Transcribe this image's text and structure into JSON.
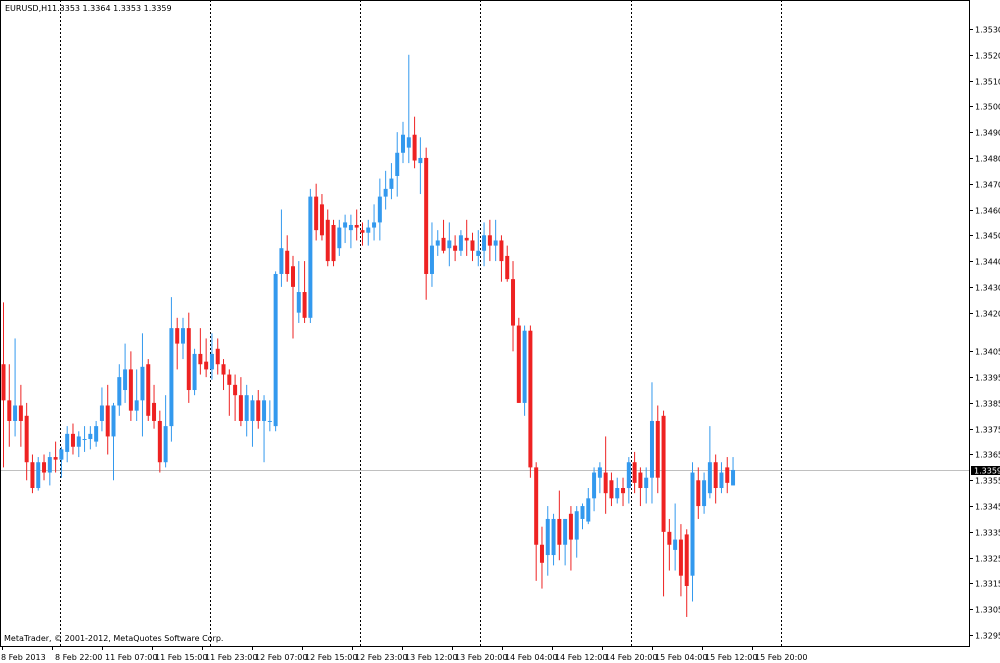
{
  "header": {
    "symbol": "EURUSD,H1",
    "ohlc": "1.3353 1.3364 1.3353 1.3359"
  },
  "footer": {
    "copyright": "MetaTrader, © 2001-2012, MetaQuotes Software Corp."
  },
  "price_tag": "1.3359",
  "colors": {
    "bull": "#3399ee",
    "bear": "#ee2222",
    "grid": "#000000",
    "price_line": "#c0c0c0"
  },
  "chart_data": {
    "type": "candlestick",
    "ylim": [
      1.329,
      1.354
    ],
    "grid": "vertical-dotted",
    "current_price": 1.3359,
    "y_ticks": [
      "1.3530",
      "1.3520",
      "1.3510",
      "1.3500",
      "1.3490",
      "1.3480",
      "1.3470",
      "1.3460",
      "1.3450",
      "1.3440",
      "1.3430",
      "1.3420",
      "1.3405",
      "1.3395",
      "1.3385",
      "1.3375",
      "1.3365",
      "1.3355",
      "1.3345",
      "1.3335",
      "1.3325",
      "1.3315",
      "1.3305",
      "1.3295"
    ],
    "x_labels": [
      "8 Feb 2013",
      "8 Feb 22:00",
      "11 Feb 07:00",
      "11 Feb 15:00",
      "11 Feb 23:00",
      "12 Feb 07:00",
      "12 Feb 15:00",
      "12 Feb 23:00",
      "13 Feb 12:00",
      "13 Feb 20:00",
      "14 Feb 04:00",
      "14 Feb 12:00",
      "14 Feb 20:00",
      "15 Feb 04:00",
      "15 Feb 12:00",
      "15 Feb 20:00"
    ],
    "candles": [
      {
        "o": 1.34,
        "h": 1.3424,
        "l": 1.336,
        "c": 1.3386
      },
      {
        "o": 1.3386,
        "h": 1.34,
        "l": 1.3368,
        "c": 1.3378
      },
      {
        "o": 1.3378,
        "h": 1.341,
        "l": 1.3372,
        "c": 1.3384
      },
      {
        "o": 1.3384,
        "h": 1.3392,
        "l": 1.3368,
        "c": 1.3378
      },
      {
        "o": 1.338,
        "h": 1.3385,
        "l": 1.3355,
        "c": 1.3362
      },
      {
        "o": 1.3362,
        "h": 1.3365,
        "l": 1.335,
        "c": 1.3352
      },
      {
        "o": 1.3352,
        "h": 1.3364,
        "l": 1.3351,
        "c": 1.3362
      },
      {
        "o": 1.3362,
        "h": 1.3365,
        "l": 1.3355,
        "c": 1.3358
      },
      {
        "o": 1.3358,
        "h": 1.3366,
        "l": 1.3353,
        "c": 1.3364
      },
      {
        "o": 1.3364,
        "h": 1.337,
        "l": 1.3358,
        "c": 1.3363
      },
      {
        "o": 1.3363,
        "h": 1.3368,
        "l": 1.3356,
        "c": 1.3367
      },
      {
        "o": 1.3366,
        "h": 1.3376,
        "l": 1.3362,
        "c": 1.3373
      },
      {
        "o": 1.3373,
        "h": 1.3377,
        "l": 1.3365,
        "c": 1.3368
      },
      {
        "o": 1.3368,
        "h": 1.3374,
        "l": 1.3364,
        "c": 1.3372
      },
      {
        "o": 1.3371,
        "h": 1.3376,
        "l": 1.3366,
        "c": 1.3371
      },
      {
        "o": 1.3371,
        "h": 1.3376,
        "l": 1.3367,
        "c": 1.3373
      },
      {
        "o": 1.337,
        "h": 1.3378,
        "l": 1.3368,
        "c": 1.3376
      },
      {
        "o": 1.3378,
        "h": 1.3391,
        "l": 1.3374,
        "c": 1.3384
      },
      {
        "o": 1.3384,
        "h": 1.3392,
        "l": 1.3365,
        "c": 1.3372
      },
      {
        "o": 1.3372,
        "h": 1.3385,
        "l": 1.3355,
        "c": 1.3384
      },
      {
        "o": 1.3384,
        "h": 1.34,
        "l": 1.338,
        "c": 1.3395
      },
      {
        "o": 1.339,
        "h": 1.3408,
        "l": 1.3385,
        "c": 1.3398
      },
      {
        "o": 1.3398,
        "h": 1.3405,
        "l": 1.3378,
        "c": 1.3382
      },
      {
        "o": 1.3382,
        "h": 1.3398,
        "l": 1.3378,
        "c": 1.3386
      },
      {
        "o": 1.3386,
        "h": 1.3412,
        "l": 1.3372,
        "c": 1.3399
      },
      {
        "o": 1.34,
        "h": 1.3402,
        "l": 1.3378,
        "c": 1.338
      },
      {
        "o": 1.3385,
        "h": 1.3392,
        "l": 1.3375,
        "c": 1.3378
      },
      {
        "o": 1.3378,
        "h": 1.3382,
        "l": 1.3358,
        "c": 1.3362
      },
      {
        "o": 1.3362,
        "h": 1.3388,
        "l": 1.336,
        "c": 1.3376
      },
      {
        "o": 1.3376,
        "h": 1.3426,
        "l": 1.337,
        "c": 1.3414
      },
      {
        "o": 1.3414,
        "h": 1.3418,
        "l": 1.3398,
        "c": 1.3408
      },
      {
        "o": 1.3408,
        "h": 1.3418,
        "l": 1.3402,
        "c": 1.3414
      },
      {
        "o": 1.3414,
        "h": 1.342,
        "l": 1.3385,
        "c": 1.339
      },
      {
        "o": 1.339,
        "h": 1.3406,
        "l": 1.3388,
        "c": 1.3404
      },
      {
        "o": 1.3404,
        "h": 1.3414,
        "l": 1.3396,
        "c": 1.34
      },
      {
        "o": 1.3401,
        "h": 1.341,
        "l": 1.3395,
        "c": 1.3398
      },
      {
        "o": 1.3398,
        "h": 1.3412,
        "l": 1.3394,
        "c": 1.3404
      },
      {
        "o": 1.3406,
        "h": 1.341,
        "l": 1.3396,
        "c": 1.34
      },
      {
        "o": 1.34,
        "h": 1.3402,
        "l": 1.339,
        "c": 1.3396
      },
      {
        "o": 1.3396,
        "h": 1.3398,
        "l": 1.338,
        "c": 1.3392
      },
      {
        "o": 1.3392,
        "h": 1.3396,
        "l": 1.3378,
        "c": 1.3388
      },
      {
        "o": 1.3388,
        "h": 1.3395,
        "l": 1.3376,
        "c": 1.3378
      },
      {
        "o": 1.3378,
        "h": 1.3392,
        "l": 1.3372,
        "c": 1.3388
      },
      {
        "o": 1.3378,
        "h": 1.3388,
        "l": 1.3368,
        "c": 1.3386
      },
      {
        "o": 1.3386,
        "h": 1.339,
        "l": 1.3375,
        "c": 1.3378
      },
      {
        "o": 1.3378,
        "h": 1.3388,
        "l": 1.3362,
        "c": 1.3386
      },
      {
        "o": 1.3378,
        "h": 1.3386,
        "l": 1.3374,
        "c": 1.3378
      },
      {
        "o": 1.3376,
        "h": 1.3436,
        "l": 1.3374,
        "c": 1.3435
      },
      {
        "o": 1.3435,
        "h": 1.346,
        "l": 1.343,
        "c": 1.3445
      },
      {
        "o": 1.3444,
        "h": 1.345,
        "l": 1.3432,
        "c": 1.3435
      },
      {
        "o": 1.3438,
        "h": 1.3442,
        "l": 1.341,
        "c": 1.343
      },
      {
        "o": 1.342,
        "h": 1.344,
        "l": 1.3416,
        "c": 1.3428
      },
      {
        "o": 1.3428,
        "h": 1.344,
        "l": 1.3416,
        "c": 1.3418
      },
      {
        "o": 1.3418,
        "h": 1.3468,
        "l": 1.3416,
        "c": 1.3465
      },
      {
        "o": 1.3465,
        "h": 1.347,
        "l": 1.3448,
        "c": 1.3452
      },
      {
        "o": 1.3462,
        "h": 1.3466,
        "l": 1.3448,
        "c": 1.345
      },
      {
        "o": 1.3456,
        "h": 1.346,
        "l": 1.3438,
        "c": 1.344
      },
      {
        "o": 1.3454,
        "h": 1.3456,
        "l": 1.3438,
        "c": 1.344
      },
      {
        "o": 1.3445,
        "h": 1.3456,
        "l": 1.3442,
        "c": 1.3453
      },
      {
        "o": 1.3453,
        "h": 1.3458,
        "l": 1.3447,
        "c": 1.3455
      },
      {
        "o": 1.3452,
        "h": 1.3458,
        "l": 1.3445,
        "c": 1.3454
      },
      {
        "o": 1.3454,
        "h": 1.346,
        "l": 1.3448,
        "c": 1.3453
      },
      {
        "o": 1.3452,
        "h": 1.3455,
        "l": 1.3446,
        "c": 1.3451
      },
      {
        "o": 1.3451,
        "h": 1.3456,
        "l": 1.3446,
        "c": 1.3453
      },
      {
        "o": 1.3453,
        "h": 1.3462,
        "l": 1.3448,
        "c": 1.3455
      },
      {
        "o": 1.3455,
        "h": 1.3472,
        "l": 1.3448,
        "c": 1.3465
      },
      {
        "o": 1.3465,
        "h": 1.3475,
        "l": 1.346,
        "c": 1.3468
      },
      {
        "o": 1.3468,
        "h": 1.3478,
        "l": 1.3464,
        "c": 1.3472
      },
      {
        "o": 1.3473,
        "h": 1.349,
        "l": 1.3465,
        "c": 1.3482
      },
      {
        "o": 1.3482,
        "h": 1.3494,
        "l": 1.3478,
        "c": 1.3489
      },
      {
        "o": 1.3484,
        "h": 1.352,
        "l": 1.3478,
        "c": 1.3488
      },
      {
        "o": 1.3489,
        "h": 1.3496,
        "l": 1.3476,
        "c": 1.3479
      },
      {
        "o": 1.3478,
        "h": 1.3488,
        "l": 1.3466,
        "c": 1.348
      },
      {
        "o": 1.348,
        "h": 1.3484,
        "l": 1.3425,
        "c": 1.3435
      },
      {
        "o": 1.3435,
        "h": 1.3455,
        "l": 1.343,
        "c": 1.3446
      },
      {
        "o": 1.3446,
        "h": 1.3452,
        "l": 1.3442,
        "c": 1.3448
      },
      {
        "o": 1.3449,
        "h": 1.3456,
        "l": 1.3443,
        "c": 1.3444
      },
      {
        "o": 1.3445,
        "h": 1.3455,
        "l": 1.3438,
        "c": 1.3448
      },
      {
        "o": 1.3446,
        "h": 1.345,
        "l": 1.344,
        "c": 1.3444
      },
      {
        "o": 1.3444,
        "h": 1.3452,
        "l": 1.3442,
        "c": 1.345
      },
      {
        "o": 1.3449,
        "h": 1.3456,
        "l": 1.3442,
        "c": 1.3448
      },
      {
        "o": 1.3448,
        "h": 1.3451,
        "l": 1.344,
        "c": 1.3444
      },
      {
        "o": 1.3442,
        "h": 1.3452,
        "l": 1.3438,
        "c": 1.3444
      },
      {
        "o": 1.3444,
        "h": 1.3455,
        "l": 1.3438,
        "c": 1.345
      },
      {
        "o": 1.345,
        "h": 1.3456,
        "l": 1.344,
        "c": 1.3446
      },
      {
        "o": 1.3446,
        "h": 1.3456,
        "l": 1.344,
        "c": 1.3448
      },
      {
        "o": 1.3448,
        "h": 1.345,
        "l": 1.3432,
        "c": 1.344
      },
      {
        "o": 1.3442,
        "h": 1.3446,
        "l": 1.3432,
        "c": 1.3433
      },
      {
        "o": 1.3433,
        "h": 1.344,
        "l": 1.3405,
        "c": 1.3415
      },
      {
        "o": 1.3415,
        "h": 1.3418,
        "l": 1.3385,
        "c": 1.3385
      },
      {
        "o": 1.3385,
        "h": 1.3415,
        "l": 1.338,
        "c": 1.3413
      },
      {
        "o": 1.3413,
        "h": 1.3415,
        "l": 1.3356,
        "c": 1.336
      },
      {
        "o": 1.336,
        "h": 1.3362,
        "l": 1.3316,
        "c": 1.333
      },
      {
        "o": 1.333,
        "h": 1.3337,
        "l": 1.3313,
        "c": 1.3323
      },
      {
        "o": 1.3326,
        "h": 1.3345,
        "l": 1.3318,
        "c": 1.334
      },
      {
        "o": 1.3326,
        "h": 1.3342,
        "l": 1.3322,
        "c": 1.334
      },
      {
        "o": 1.334,
        "h": 1.3351,
        "l": 1.3324,
        "c": 1.333
      },
      {
        "o": 1.333,
        "h": 1.334,
        "l": 1.3322,
        "c": 1.334
      },
      {
        "o": 1.3342,
        "h": 1.3345,
        "l": 1.332,
        "c": 1.3332
      },
      {
        "o": 1.3332,
        "h": 1.3345,
        "l": 1.3325,
        "c": 1.3343
      },
      {
        "o": 1.334,
        "h": 1.3346,
        "l": 1.3336,
        "c": 1.3345
      },
      {
        "o": 1.3339,
        "h": 1.3352,
        "l": 1.3338,
        "c": 1.3348
      },
      {
        "o": 1.3348,
        "h": 1.336,
        "l": 1.3343,
        "c": 1.3358
      },
      {
        "o": 1.3356,
        "h": 1.3362,
        "l": 1.335,
        "c": 1.336
      },
      {
        "o": 1.3358,
        "h": 1.3372,
        "l": 1.3342,
        "c": 1.335
      },
      {
        "o": 1.3355,
        "h": 1.3358,
        "l": 1.3345,
        "c": 1.3348
      },
      {
        "o": 1.3348,
        "h": 1.3356,
        "l": 1.3346,
        "c": 1.3352
      },
      {
        "o": 1.3352,
        "h": 1.3356,
        "l": 1.3345,
        "c": 1.335
      },
      {
        "o": 1.3352,
        "h": 1.3364,
        "l": 1.3346,
        "c": 1.3362
      },
      {
        "o": 1.3362,
        "h": 1.3366,
        "l": 1.335,
        "c": 1.3354
      },
      {
        "o": 1.3358,
        "h": 1.336,
        "l": 1.3345,
        "c": 1.3352
      },
      {
        "o": 1.3352,
        "h": 1.336,
        "l": 1.3346,
        "c": 1.3356
      },
      {
        "o": 1.3356,
        "h": 1.3393,
        "l": 1.3346,
        "c": 1.3378
      },
      {
        "o": 1.3378,
        "h": 1.3384,
        "l": 1.335,
        "c": 1.3356
      },
      {
        "o": 1.338,
        "h": 1.3382,
        "l": 1.331,
        "c": 1.3335
      },
      {
        "o": 1.3335,
        "h": 1.334,
        "l": 1.332,
        "c": 1.333
      },
      {
        "o": 1.3328,
        "h": 1.3346,
        "l": 1.332,
        "c": 1.3332
      },
      {
        "o": 1.3332,
        "h": 1.3338,
        "l": 1.331,
        "c": 1.3318
      },
      {
        "o": 1.3334,
        "h": 1.3336,
        "l": 1.3302,
        "c": 1.3314
      },
      {
        "o": 1.3318,
        "h": 1.3362,
        "l": 1.3308,
        "c": 1.3358
      },
      {
        "o": 1.3355,
        "h": 1.336,
        "l": 1.334,
        "c": 1.3345
      },
      {
        "o": 1.3345,
        "h": 1.3358,
        "l": 1.3342,
        "c": 1.3355
      },
      {
        "o": 1.335,
        "h": 1.3376,
        "l": 1.3348,
        "c": 1.3362
      },
      {
        "o": 1.3362,
        "h": 1.3365,
        "l": 1.3346,
        "c": 1.3352
      },
      {
        "o": 1.3352,
        "h": 1.3362,
        "l": 1.335,
        "c": 1.3358
      },
      {
        "o": 1.336,
        "h": 1.3364,
        "l": 1.335,
        "c": 1.3354
      },
      {
        "o": 1.3353,
        "h": 1.3364,
        "l": 1.3353,
        "c": 1.3359
      }
    ]
  }
}
